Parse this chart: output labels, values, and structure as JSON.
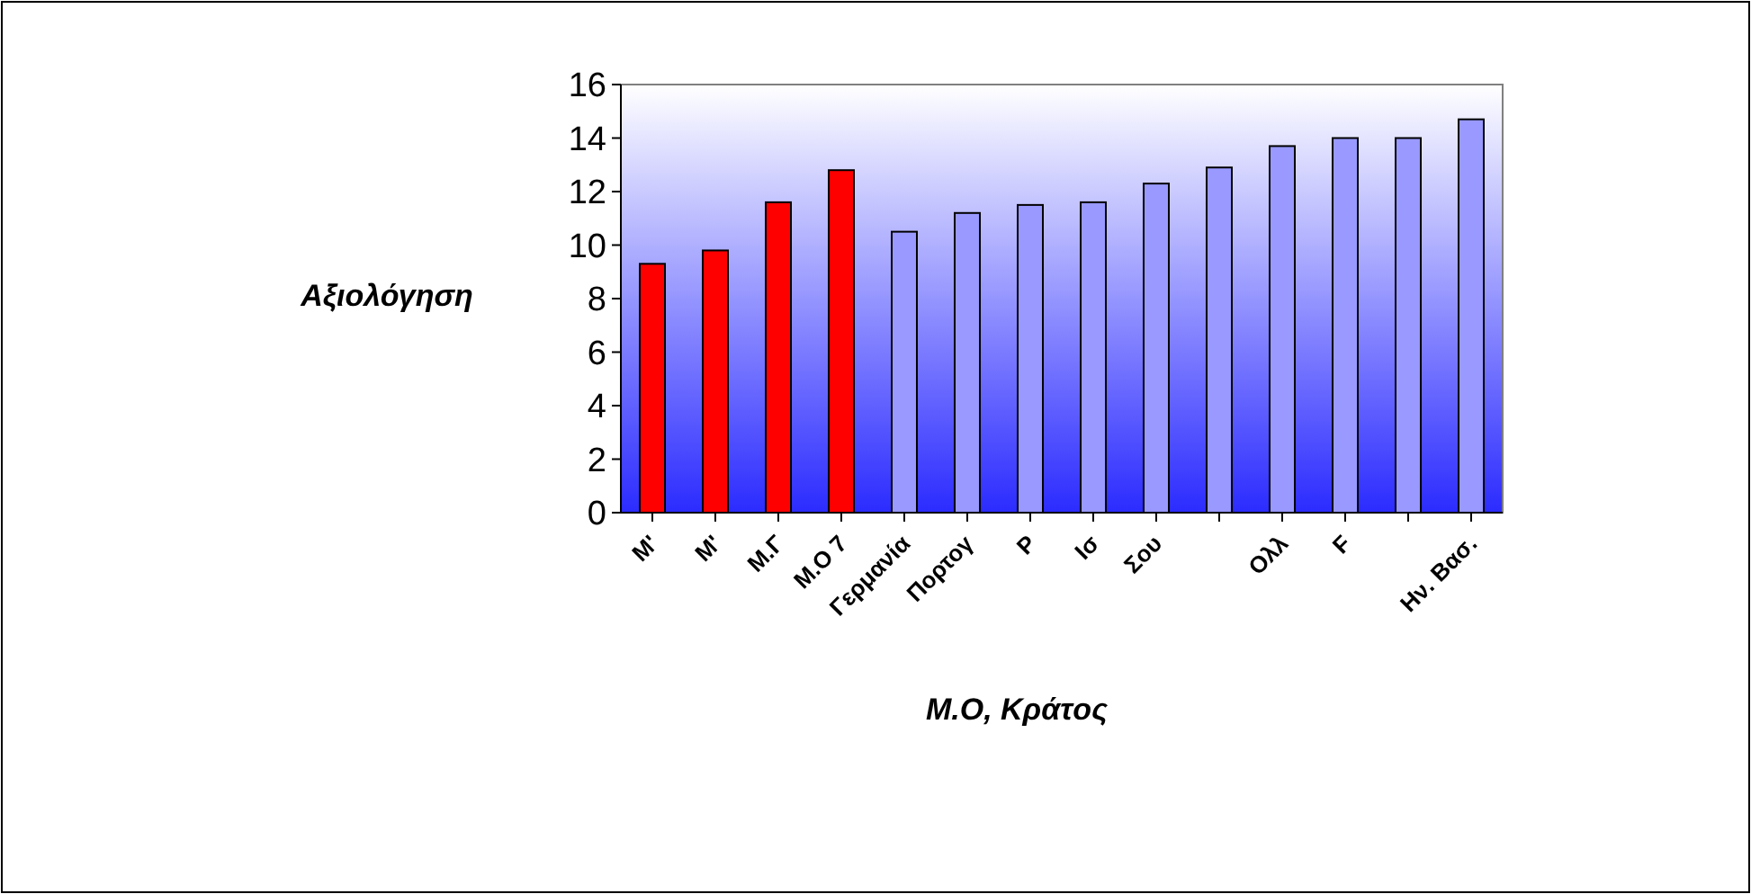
{
  "chart_data": {
    "type": "bar",
    "xlabel": "M.O, Κράτος",
    "ylabel": "Αξιολόγηση",
    "categories": [
      "M'",
      "M'",
      "M.Γ",
      "M.O 7",
      "Γερμανία",
      "Πορτογ",
      "P",
      "Ισ",
      "Σου",
      null,
      "Ολλ",
      "F",
      null,
      "Ην. Βασ."
    ],
    "values": [
      9.3,
      9.8,
      11.6,
      12.8,
      10.5,
      11.2,
      11.5,
      11.6,
      12.3,
      12.9,
      13.7,
      14.0,
      14.0,
      14.7
    ],
    "colors": [
      "#ff0000",
      "#ff0000",
      "#ff0000",
      "#ff0000",
      "#9999ff",
      "#9999ff",
      "#9999ff",
      "#9999ff",
      "#9999ff",
      "#9999ff",
      "#9999ff",
      "#9999ff",
      "#9999ff",
      "#9999ff"
    ],
    "ylim": [
      0,
      16
    ],
    "yticks": [
      0,
      2,
      4,
      6,
      8,
      10,
      12,
      14,
      16
    ],
    "grid": false
  }
}
